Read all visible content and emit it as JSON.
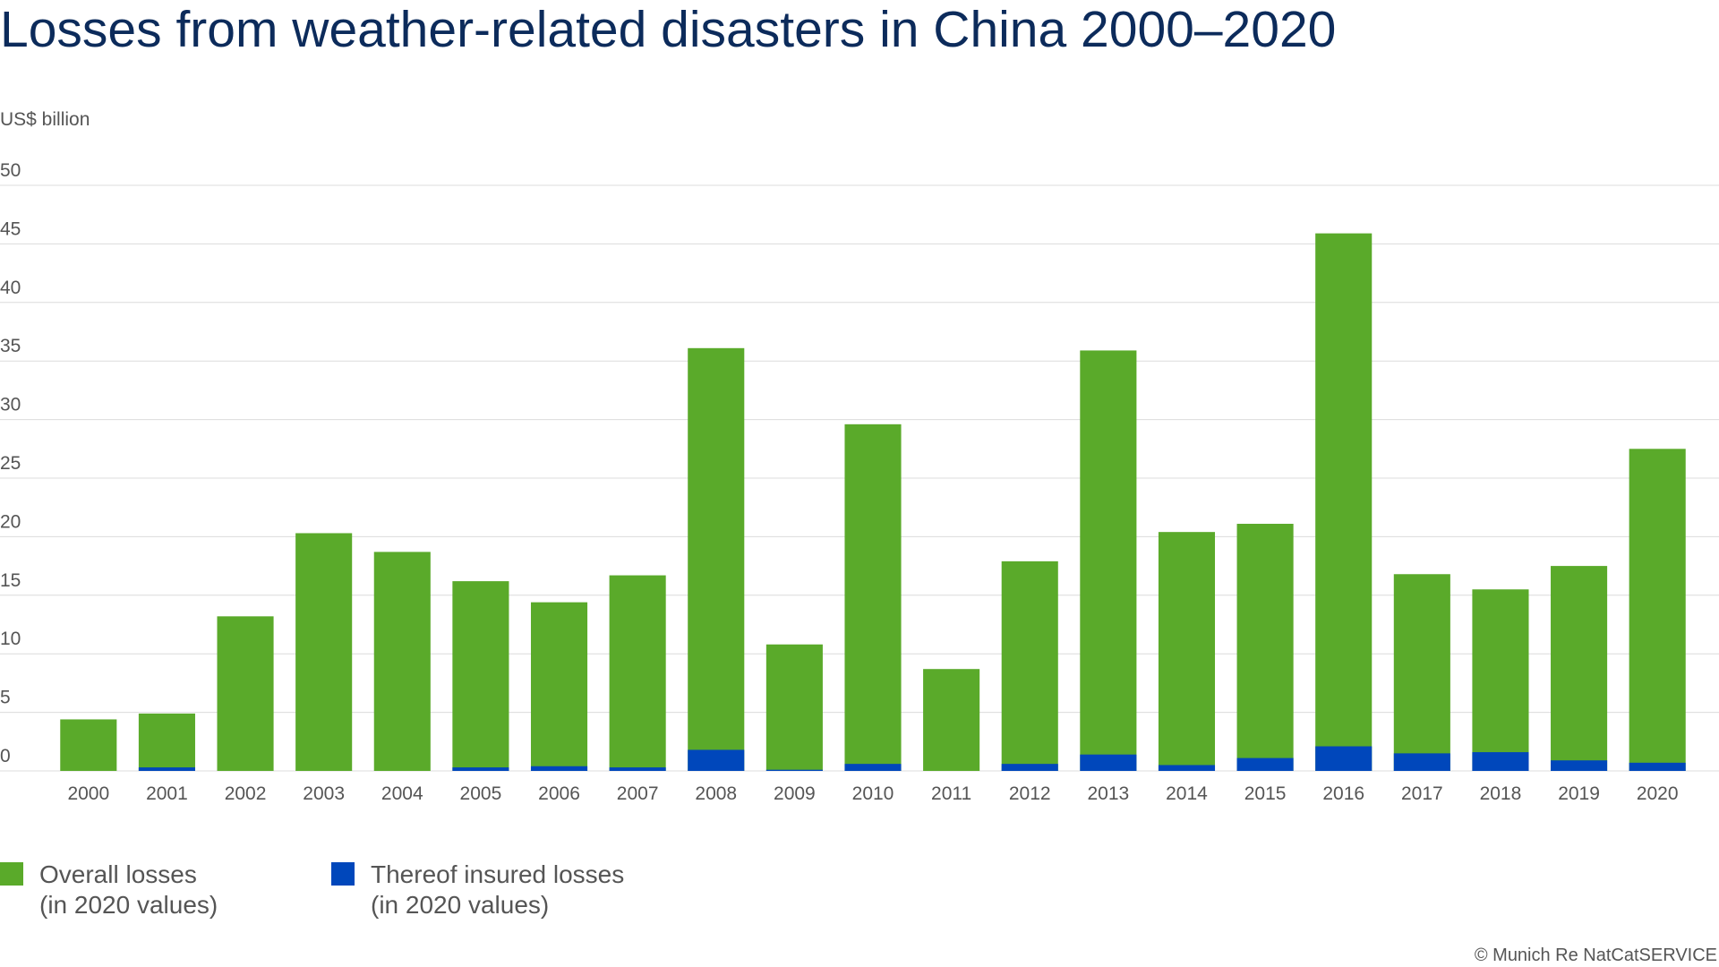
{
  "chart_data": {
    "type": "bar",
    "title": "Losses from weather-related disasters in China 2000–2020",
    "y_label": "US$ billion",
    "source": "© Munich Re NatCatSERVICE",
    "categories": [
      "2000",
      "2001",
      "2002",
      "2003",
      "2004",
      "2005",
      "2006",
      "2007",
      "2008",
      "2009",
      "2010",
      "2011",
      "2012",
      "2013",
      "2014",
      "2015",
      "2016",
      "2017",
      "2018",
      "2019",
      "2020"
    ],
    "series": [
      {
        "name": "Overall losses\n(in 2020 values)",
        "color": "#5aaa2a",
        "values": [
          4.4,
          4.9,
          13.2,
          20.3,
          18.7,
          16.2,
          14.4,
          16.7,
          36.1,
          10.8,
          29.6,
          8.7,
          17.9,
          35.9,
          20.4,
          21.1,
          45.9,
          16.8,
          15.5,
          17.5,
          27.5
        ]
      },
      {
        "name": "Thereof insured losses\n(in 2020 values)",
        "color": "#0047bb",
        "values": [
          0,
          0.3,
          0,
          0,
          0,
          0.3,
          0.4,
          0.3,
          1.8,
          0.1,
          0.6,
          0,
          0.6,
          1.4,
          0.5,
          1.1,
          2.1,
          1.5,
          1.6,
          0.9,
          0.7
        ]
      }
    ],
    "overlay": true,
    "ylim": [
      0,
      50
    ],
    "yticks": [
      0,
      5,
      10,
      15,
      20,
      25,
      30,
      35,
      40,
      45,
      50
    ],
    "grid": true
  }
}
